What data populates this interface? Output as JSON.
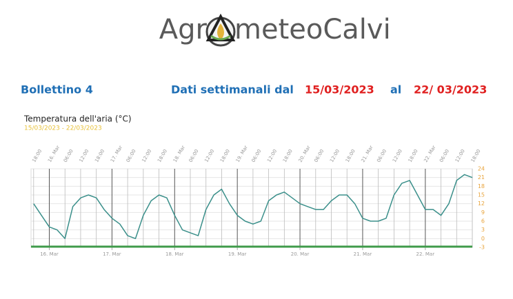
{
  "header": {
    "logo_left": "Agr",
    "logo_right": "meteoCalvi"
  },
  "bulletin": {
    "label": "Bollettino 4",
    "period_label": "Dati settimanali dal",
    "from": "15/03/2023",
    "to_label": "al",
    "to": "22/ 03/2023"
  },
  "chart_data": {
    "type": "line",
    "title": "Temperatura dell'aria (°C)",
    "subtitle": "15/03/2023 - 22/03/2023",
    "x": [
      "2023-03-15T18:00",
      "2023-03-15T21:00",
      "2023-03-16T00:00",
      "2023-03-16T03:00",
      "2023-03-16T06:00",
      "2023-03-16T09:00",
      "2023-03-16T12:00",
      "2023-03-16T15:00",
      "2023-03-16T18:00",
      "2023-03-16T21:00",
      "2023-03-17T00:00",
      "2023-03-17T03:00",
      "2023-03-17T06:00",
      "2023-03-17T09:00",
      "2023-03-17T12:00",
      "2023-03-17T15:00",
      "2023-03-17T18:00",
      "2023-03-17T21:00",
      "2023-03-18T00:00",
      "2023-03-18T03:00",
      "2023-03-18T06:00",
      "2023-03-18T09:00",
      "2023-03-18T12:00",
      "2023-03-18T15:00",
      "2023-03-18T18:00",
      "2023-03-18T21:00",
      "2023-03-19T00:00",
      "2023-03-19T03:00",
      "2023-03-19T06:00",
      "2023-03-19T09:00",
      "2023-03-19T12:00",
      "2023-03-19T15:00",
      "2023-03-19T18:00",
      "2023-03-19T21:00",
      "2023-03-20T00:00",
      "2023-03-20T03:00",
      "2023-03-20T06:00",
      "2023-03-20T09:00",
      "2023-03-20T12:00",
      "2023-03-20T15:00",
      "2023-03-20T18:00",
      "2023-03-20T21:00",
      "2023-03-21T00:00",
      "2023-03-21T03:00",
      "2023-03-21T06:00",
      "2023-03-21T09:00",
      "2023-03-21T12:00",
      "2023-03-21T15:00",
      "2023-03-21T18:00",
      "2023-03-21T21:00",
      "2023-03-22T00:00",
      "2023-03-22T03:00",
      "2023-03-22T06:00",
      "2023-03-22T09:00",
      "2023-03-22T12:00",
      "2023-03-22T15:00",
      "2023-03-22T18:00"
    ],
    "series": [
      {
        "name": "Temperatura",
        "color": "#3a8f8a",
        "values": [
          12,
          8,
          4,
          3,
          0,
          11,
          14,
          15,
          14,
          10,
          7,
          5,
          1,
          0,
          8,
          13,
          15,
          14,
          8,
          3,
          2,
          1,
          10,
          15,
          17,
          12,
          8,
          6,
          5,
          6,
          13,
          15,
          16,
          14,
          12,
          11,
          10,
          10,
          13,
          15,
          15,
          12,
          7,
          6,
          6,
          7,
          15,
          19,
          20,
          15,
          10,
          10,
          8,
          12,
          20,
          22,
          21
        ]
      }
    ],
    "xlim": [
      "2023-03-15T17:00",
      "2023-03-22T18:00"
    ],
    "xticks": [
      {
        "value": "2023-03-16T00:00",
        "label": "16. Mar"
      },
      {
        "value": "2023-03-17T00:00",
        "label": "17. Mar"
      },
      {
        "value": "2023-03-18T00:00",
        "label": "18. Mar"
      },
      {
        "value": "2023-03-19T00:00",
        "label": "19. Mar"
      },
      {
        "value": "2023-03-20T00:00",
        "label": "20. Mar"
      },
      {
        "value": "2023-03-21T00:00",
        "label": "21. Mar"
      },
      {
        "value": "2023-03-22T00:00",
        "label": "22. Mar"
      }
    ],
    "xticks_top": [
      {
        "value": "2023-03-15T18:00",
        "label": "18:00"
      },
      {
        "value": "2023-03-16T00:00",
        "label": "16. Mar"
      },
      {
        "value": "2023-03-16T06:00",
        "label": "06:00"
      },
      {
        "value": "2023-03-16T12:00",
        "label": "12:00"
      },
      {
        "value": "2023-03-16T18:00",
        "label": "18:00"
      },
      {
        "value": "2023-03-17T00:00",
        "label": "17. Mar"
      },
      {
        "value": "2023-03-17T06:00",
        "label": "06:00"
      },
      {
        "value": "2023-03-17T12:00",
        "label": "12:00"
      },
      {
        "value": "2023-03-17T18:00",
        "label": "18:00"
      },
      {
        "value": "2023-03-18T00:00",
        "label": "18. Mar"
      },
      {
        "value": "2023-03-18T06:00",
        "label": "06:00"
      },
      {
        "value": "2023-03-18T12:00",
        "label": "12:00"
      },
      {
        "value": "2023-03-18T18:00",
        "label": "18:00"
      },
      {
        "value": "2023-03-19T00:00",
        "label": "19. Mar"
      },
      {
        "value": "2023-03-19T06:00",
        "label": "06:00"
      },
      {
        "value": "2023-03-19T12:00",
        "label": "12:00"
      },
      {
        "value": "2023-03-19T18:00",
        "label": "18:00"
      },
      {
        "value": "2023-03-20T00:00",
        "label": "20. Mar"
      },
      {
        "value": "2023-03-20T06:00",
        "label": "06:00"
      },
      {
        "value": "2023-03-20T12:00",
        "label": "12:00"
      },
      {
        "value": "2023-03-20T18:00",
        "label": "18:00"
      },
      {
        "value": "2023-03-21T00:00",
        "label": "21. Mar"
      },
      {
        "value": "2023-03-21T06:00",
        "label": "06:00"
      },
      {
        "value": "2023-03-21T12:00",
        "label": "12:00"
      },
      {
        "value": "2023-03-21T18:00",
        "label": "18:00"
      },
      {
        "value": "2023-03-22T00:00",
        "label": "22. Mar"
      },
      {
        "value": "2023-03-22T06:00",
        "label": "06:00"
      },
      {
        "value": "2023-03-22T12:00",
        "label": "12:00"
      },
      {
        "value": "2023-03-22T18:00",
        "label": "18:00"
      }
    ],
    "ylim": [
      -3,
      24
    ],
    "yticks": [
      24,
      21,
      18,
      15,
      12,
      9,
      6,
      3,
      0,
      -3
    ],
    "ytick_color": "#e8a33a",
    "grid": true
  }
}
